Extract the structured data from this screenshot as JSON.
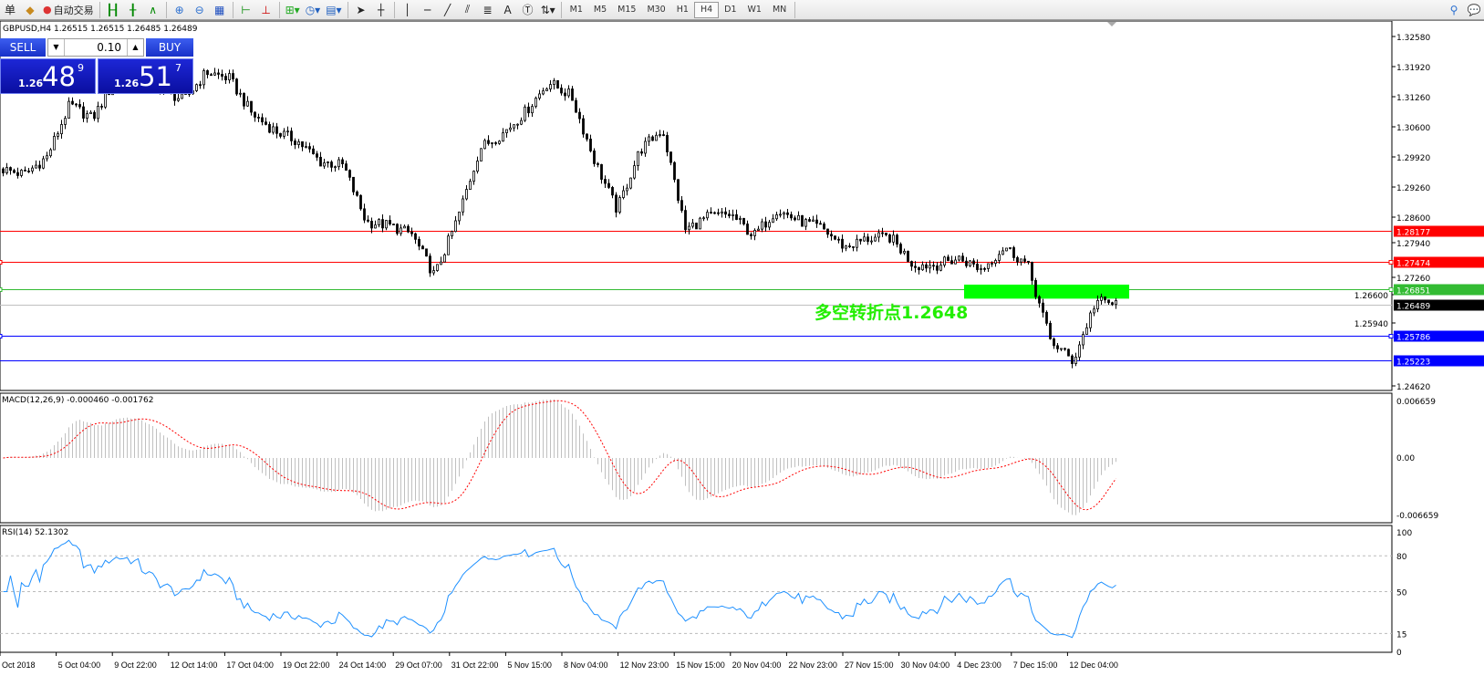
{
  "toolbar": {
    "menu_fragment": "单",
    "auto_trading_label": "自动交易",
    "icons": [
      "gold-bars-icon",
      "auto-trading-icon",
      "bar-chart-icon",
      "candlestick-icon",
      "line-chart-icon",
      "zoom-in-icon",
      "zoom-out-icon",
      "tile-windows-icon",
      "chart-shift-icon",
      "autoscroll-icon",
      "indicators-icon",
      "periods-clock-icon",
      "templates-icon",
      "cursor-icon",
      "crosshair-icon",
      "vertical-line-icon",
      "horizontal-line-icon",
      "trendline-icon",
      "equidistant-channel-icon",
      "fibonacci-icon",
      "text-icon",
      "text-label-icon",
      "arrows-icon",
      "search-icon",
      "chat-icon"
    ],
    "text_tool": "A",
    "timeframes": [
      "M1",
      "M5",
      "M15",
      "M30",
      "H1",
      "H4",
      "D1",
      "W1",
      "MN"
    ],
    "active_timeframe": "H4"
  },
  "chart": {
    "header": "GBPUSD,H4  1.26515 1.26515 1.26485 1.26489",
    "trade_panel": {
      "sell": "SELL",
      "buy": "BUY",
      "lot": "0.10",
      "sell_prefix": "1.26",
      "sell_big": "48",
      "sell_sup": "9",
      "buy_prefix": "1.26",
      "buy_big": "51",
      "buy_sup": "7"
    },
    "annotation": "多空转折点1.2648",
    "annotation_color": "#22ee00",
    "zone_color": "#00ff00",
    "price_ticks": [
      "1.32580",
      "1.31920",
      "1.31260",
      "1.30600",
      "1.29920",
      "1.29260",
      "1.28600",
      "1.27940",
      "1.27260",
      "1.26600",
      "1.25940",
      "1.24620"
    ],
    "lines": [
      {
        "price": 1.28177,
        "label": "1.28177",
        "color": "#ff0000"
      },
      {
        "price": 1.27474,
        "label": "1.27474",
        "color": "#ff0000"
      },
      {
        "price": 1.26851,
        "label": "1.26851",
        "color": "#33bb33"
      },
      {
        "price": 1.26489,
        "label": "1.26489",
        "color": "#000000",
        "line": "#c0c0c0"
      },
      {
        "price": 1.25786,
        "label": "1.25786",
        "color": "#0000ff"
      },
      {
        "price": 1.25223,
        "label": "1.25223",
        "color": "#0000ff"
      }
    ],
    "zone": {
      "top": 1.2695,
      "bottom": 1.2663
    }
  },
  "chart_data": {
    "type": "candlestick",
    "symbol": "GBPUSD",
    "timeframe": "H4",
    "close_path": [
      1.2959,
      1.2946,
      1.2986,
      1.3105,
      1.3074,
      1.3161,
      1.3172,
      1.3141,
      1.3115,
      1.318,
      1.3165,
      1.3084,
      1.3046,
      1.3022,
      1.2975,
      1.2967,
      1.2838,
      1.283,
      1.281,
      1.2715,
      1.2845,
      1.3007,
      1.304,
      1.309,
      1.3157,
      1.3125,
      1.298,
      1.2865,
      1.3001,
      1.305,
      1.282,
      1.285,
      1.2855,
      1.2806,
      1.2866,
      1.284,
      1.2823,
      1.278,
      1.28,
      1.2803,
      1.274,
      1.274,
      1.2755,
      1.273,
      1.2782,
      1.274,
      1.2569,
      1.252,
      1.2658,
      1.2649
    ],
    "ylim": [
      1.2462,
      1.3258
    ],
    "x_ticks": [
      "Oct 2018",
      "5 Oct 04:00",
      "9 Oct 22:00",
      "12 Oct 14:00",
      "17 Oct 04:00",
      "19 Oct 22:00",
      "24 Oct 14:00",
      "29 Oct 07:00",
      "31 Oct 22:00",
      "5 Nov 15:00",
      "8 Nov 04:00",
      "12 Nov 23:00",
      "15 Nov 15:00",
      "20 Nov 04:00",
      "22 Nov 23:00",
      "27 Nov 15:00",
      "30 Nov 04:00",
      "4 Dec 23:00",
      "7 Dec 15:00",
      "12 Dec 04:00"
    ]
  },
  "macd": {
    "label": "MACD(12,26,9) -0.000460 -0.001762",
    "ticks": [
      "0.006659",
      "0.00",
      "-0.006659"
    ],
    "range": 0.006659,
    "hist_color": "#c0c0c0",
    "signal_color": "#ff0000"
  },
  "rsi": {
    "label": "RSI(14) 52.1302",
    "ticks": [
      "100",
      "80",
      "50",
      "15",
      "0"
    ],
    "levels": [
      80,
      50,
      15
    ],
    "color": "#1e90ff"
  }
}
